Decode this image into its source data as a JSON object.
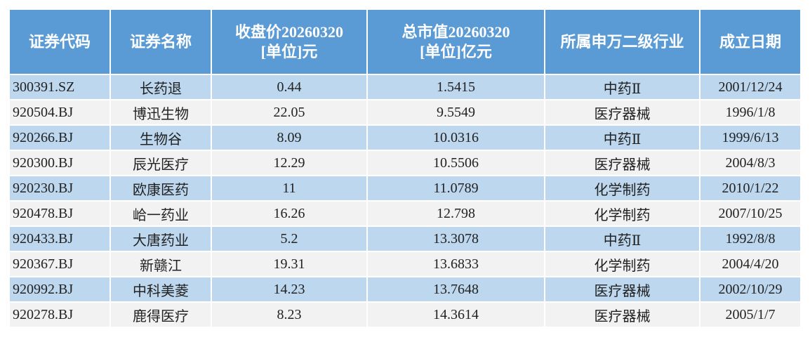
{
  "table": {
    "header": [
      "证券代码",
      "证券名称",
      "收盘价20260320\n[单位]元",
      "总市值20260320\n[单位]亿元",
      "所属申万二级行业",
      "成立日期"
    ],
    "rows": [
      [
        "300391.SZ",
        "长药退",
        "0.44",
        "1.5415",
        "中药Ⅱ",
        "2001/12/24"
      ],
      [
        "920504.BJ",
        "博迅生物",
        "22.05",
        "9.5549",
        "医疗器械",
        "1996/1/8"
      ],
      [
        "920266.BJ",
        "生物谷",
        "8.09",
        "10.0316",
        "中药Ⅱ",
        "1999/6/13"
      ],
      [
        "920300.BJ",
        "辰光医疗",
        "12.29",
        "10.5506",
        "医疗器械",
        "2004/8/3"
      ],
      [
        "920230.BJ",
        "欧康医药",
        "11",
        "11.0789",
        "化学制药",
        "2010/1/22"
      ],
      [
        "920478.BJ",
        "峆一药业",
        "16.26",
        "12.798",
        "化学制药",
        "2007/10/25"
      ],
      [
        "920433.BJ",
        "大唐药业",
        "5.2",
        "13.3078",
        "中药Ⅱ",
        "1992/8/8"
      ],
      [
        "920367.BJ",
        "新赣江",
        "19.31",
        "13.6833",
        "化学制药",
        "2004/4/20"
      ],
      [
        "920992.BJ",
        "中科美菱",
        "14.23",
        "13.7648",
        "医疗器械",
        "2002/10/29"
      ],
      [
        "920278.BJ",
        "鹿得医疗",
        "8.23",
        "14.3614",
        "医疗器械",
        "2005/1/7"
      ]
    ]
  }
}
